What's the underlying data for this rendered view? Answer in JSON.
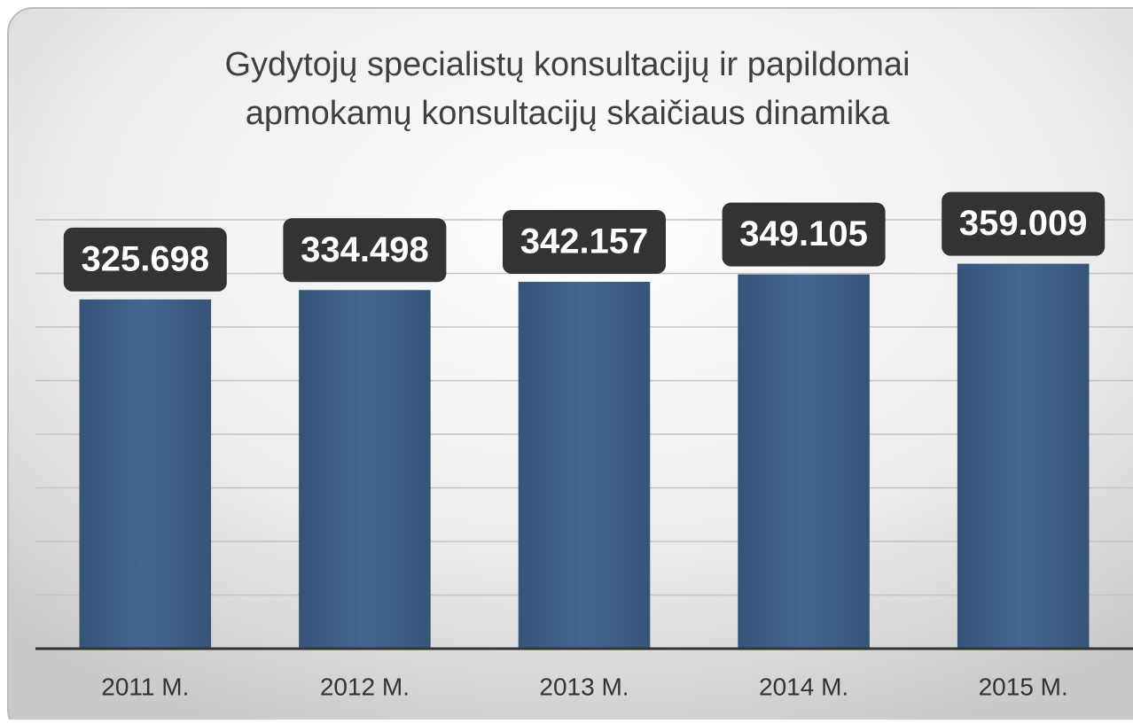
{
  "chart_data": {
    "type": "bar",
    "title": [
      "Gydytojų specialistų konsultacijų ir papildomai",
      "apmokamų konsultacijų skaičiaus dinamika"
    ],
    "categories": [
      "2011 M.",
      "2012 M.",
      "2013 M.",
      "2014 M.",
      "2015 M."
    ],
    "values": [
      325698,
      334498,
      342157,
      349105,
      359009
    ],
    "value_labels": [
      "325.698",
      "334.498",
      "342.157",
      "349.105",
      "359.009"
    ],
    "color": "#3f6189",
    "ylim": [
      0,
      400000
    ],
    "yticks": [
      0,
      50000,
      100000,
      150000,
      200000,
      250000,
      300000,
      350000,
      400000
    ],
    "grid": true
  }
}
